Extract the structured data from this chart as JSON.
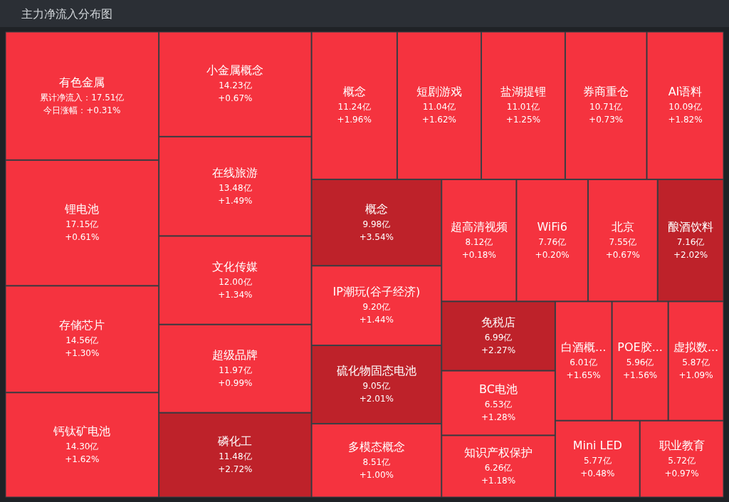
{
  "chart_data": {
    "type": "other",
    "title": "主力净流入分布图",
    "categories": [
      "有色金属",
      "锂电池",
      "存储芯片",
      "钙钛矿电池",
      "小金属概念",
      "在线旅游",
      "文化传媒",
      "超级品牌",
      "磷化工",
      "概念",
      "短剧游戏",
      "盐湖提锂",
      "券商重仓",
      "AI语料",
      "概念",
      "IP潮玩(谷子经济)",
      "硫化物固态电池",
      "多模态概念",
      "超高清视频",
      "WiFi6",
      "北京",
      "酿酒饮料",
      "免税店",
      "BC电池",
      "知识产权保护",
      "白酒概...",
      "POE胶...",
      "虚拟数...",
      "Mini LED",
      "职业教育"
    ],
    "series": [
      {
        "values": [
          17.51,
          17.15,
          14.56,
          14.3,
          14.23,
          13.48,
          12.0,
          11.97,
          11.48,
          11.24,
          11.04,
          11.01,
          10.71,
          10.09,
          9.98,
          9.2,
          9.05,
          8.51,
          8.12,
          7.76,
          7.55,
          7.16,
          6.99,
          6.53,
          6.26,
          6.01,
          5.96,
          5.87,
          5.77,
          5.72
        ],
        "value_labels": [
          "累计净流入：17.51亿",
          "17.15亿",
          "14.56亿",
          "14.30亿",
          "14.23亿",
          "13.48亿",
          "12.00亿",
          "11.97亿",
          "11.48亿",
          "11.24亿",
          "11.04亿",
          "11.01亿",
          "10.71亿",
          "10.09亿",
          "9.98亿",
          "9.20亿",
          "9.05亿",
          "8.51亿",
          "8.12亿",
          "7.76亿",
          "7.55亿",
          "7.16亿",
          "6.99亿",
          "6.53亿",
          "6.26亿",
          "6.01亿",
          "5.96亿",
          "5.87亿",
          "5.77亿",
          "5.72亿"
        ],
        "colors": [
          "#f5333f",
          "#f5333f",
          "#f5333f",
          "#f5333f",
          "#f5333f",
          "#f5333f",
          "#f5333f",
          "#f5333f",
          "#be222a",
          "#f5333f",
          "#f5333f",
          "#f5333f",
          "#f5333f",
          "#f5333f",
          "#be222a",
          "#f5333f",
          "#be222a",
          "#f5333f",
          "#f5333f",
          "#f5333f",
          "#f5333f",
          "#be222a",
          "#be222a",
          "#f5333f",
          "#f5333f",
          "#f5333f",
          "#f5333f",
          "#f5333f",
          "#f5333f",
          "#f5333f"
        ]
      },
      {
        "values": [
          0.31,
          0.61,
          1.3,
          1.62,
          0.67,
          1.49,
          1.34,
          0.99,
          2.72,
          1.96,
          1.62,
          1.25,
          0.73,
          1.82,
          3.54,
          1.44,
          2.01,
          1.0,
          0.18,
          0.2,
          0.67,
          2.02,
          2.27,
          1.28,
          1.18,
          1.65,
          1.56,
          1.09,
          0.48,
          0.97
        ],
        "value_labels": [
          "今日涨幅：+0.31%",
          "+0.61%",
          "+1.30%",
          "+1.62%",
          "+0.67%",
          "+1.49%",
          "+1.34%",
          "+0.99%",
          "+2.72%",
          "+1.96%",
          "+1.62%",
          "+1.25%",
          "+0.73%",
          "+1.82%",
          "+3.54%",
          "+1.44%",
          "+2.01%",
          "+1.00%",
          "+0.18%",
          "+0.20%",
          "+0.67%",
          "+2.02%",
          "+2.27%",
          "+1.28%",
          "+1.18%",
          "+1.65%",
          "+1.56%",
          "+1.09%",
          "+0.48%",
          "+0.97%"
        ]
      }
    ]
  }
}
